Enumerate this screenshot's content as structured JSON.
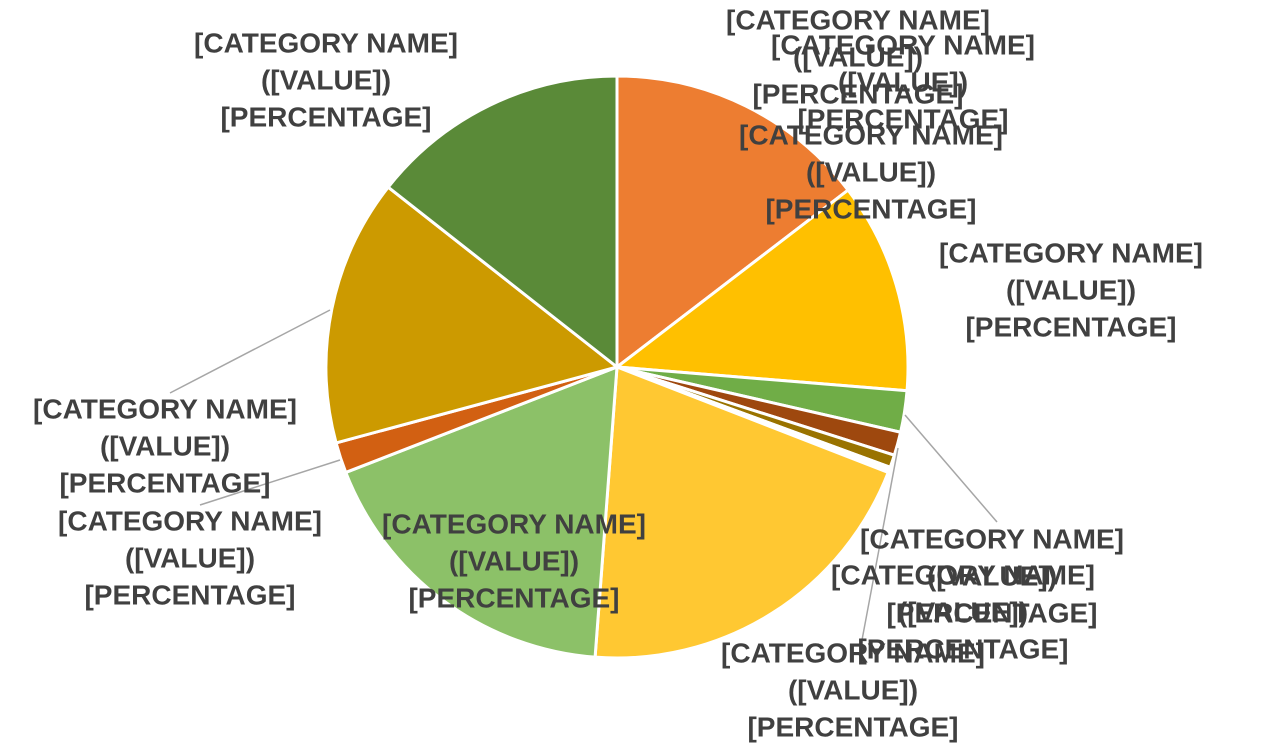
{
  "chart_data": {
    "type": "pie",
    "categories": [
      "[CATEGORY NAME]",
      "[CATEGORY NAME]",
      "[CATEGORY NAME]",
      "[CATEGORY NAME]",
      "[CATEGORY NAME]",
      "[CATEGORY NAME]",
      "[CATEGORY NAME]",
      "[CATEGORY NAME]",
      "[CATEGORY NAME]",
      "[CATEGORY NAME]",
      "[CATEGORY NAME]"
    ],
    "values": [
      14.6,
      11.7,
      2.3,
      1.3,
      0.7,
      0.3,
      20.3,
      17.9,
      1.7,
      14.8,
      14.4
    ],
    "value_labels": [
      "([VALUE])",
      "([VALUE])",
      "([VALUE])",
      "([VALUE])",
      "([VALUE])",
      "([VALUE])",
      "([VALUE])",
      "([VALUE])",
      "([VALUE])",
      "([VALUE])",
      "([VALUE])"
    ],
    "percent_labels": [
      "[PERCENTAGE]",
      "[PERCENTAGE]",
      "[PERCENTAGE]",
      "[PERCENTAGE]",
      "[PERCENTAGE]",
      "[PERCENTAGE]",
      "[PERCENTAGE]",
      "[PERCENTAGE]",
      "[PERCENTAGE]",
      "[PERCENTAGE]",
      "[PERCENTAGE]"
    ],
    "colors": [
      "#ED7D31",
      "#FFC000",
      "#70AD47",
      "#9E480E",
      "#997300",
      "#FFFFFF",
      "#FFC832",
      "#8CC168",
      "#D26012",
      "#CC9A00",
      "#5A8A38"
    ]
  }
}
